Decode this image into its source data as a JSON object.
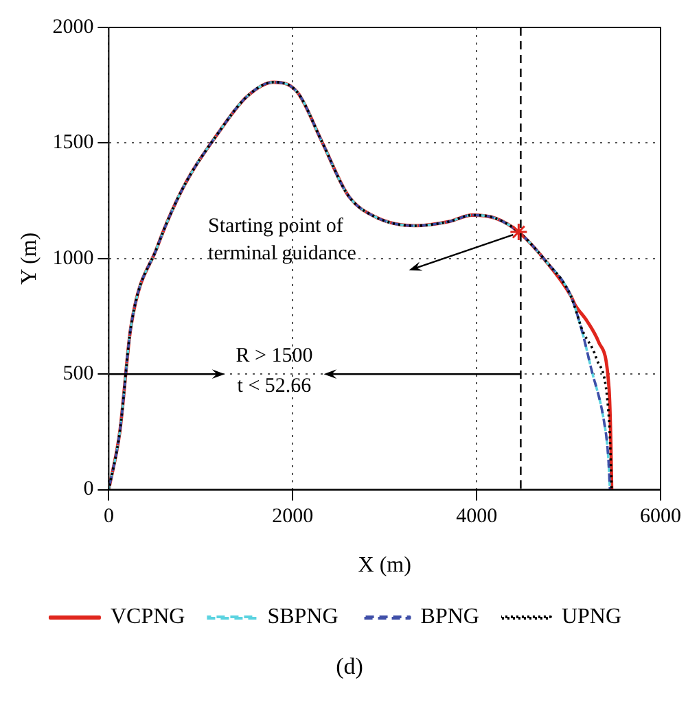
{
  "chart_data": {
    "type": "line",
    "xlabel": "X (m)",
    "ylabel": "Y (m)",
    "xlim": [
      0,
      6000
    ],
    "xticks": [
      0,
      2000,
      4000,
      6000
    ],
    "ylim": [
      0,
      2000
    ],
    "yticks": [
      0,
      500,
      1000,
      1500,
      2000
    ],
    "grid": true,
    "legend": "bottom",
    "series": [
      {
        "name": "VCPNG",
        "color": "#e0261d",
        "line_style": "solid",
        "x": [
          0,
          120,
          241,
          523,
          800,
          1197,
          1500,
          1790,
          2050,
          2322,
          2602,
          2900,
          3333,
          3700,
          3951,
          4200,
          4457,
          4750,
          5020,
          5070,
          5200,
          5329,
          5441,
          5460,
          5469
        ],
        "values": [
          0,
          250,
          705,
          1046,
          1300,
          1547,
          1700,
          1763,
          1720,
          1502,
          1274,
          1180,
          1142,
          1160,
          1188,
          1175,
          1115,
          990,
          842,
          800,
          730,
          637,
          432,
          200,
          0
        ]
      },
      {
        "name": "SBPNG",
        "color": "#5bd3e0",
        "line_style": "dashed",
        "x": [
          0,
          120,
          241,
          523,
          800,
          1197,
          1500,
          1790,
          2050,
          2322,
          2602,
          2900,
          3333,
          3700,
          3951,
          4200,
          4457,
          4750,
          5020,
          5150,
          5245,
          5385,
          5430,
          5450
        ],
        "values": [
          0,
          250,
          705,
          1046,
          1300,
          1547,
          1700,
          1763,
          1720,
          1502,
          1274,
          1180,
          1142,
          1160,
          1188,
          1175,
          1115,
          990,
          842,
          680,
          525,
          296,
          150,
          0
        ]
      },
      {
        "name": "BPNG",
        "color": "#3f4fa8",
        "line_style": "dashed",
        "x": [
          0,
          120,
          241,
          523,
          800,
          1197,
          1500,
          1790,
          2050,
          2322,
          2602,
          2900,
          3333,
          3700,
          3951,
          4200,
          4457,
          4750,
          5020,
          5150,
          5245,
          5385,
          5430,
          5450
        ],
        "values": [
          0,
          250,
          705,
          1046,
          1300,
          1547,
          1700,
          1763,
          1720,
          1502,
          1274,
          1180,
          1142,
          1160,
          1188,
          1175,
          1115,
          990,
          842,
          680,
          525,
          296,
          150,
          0
        ]
      },
      {
        "name": "UPNG",
        "color": "#000000",
        "line_style": "dotted",
        "x": [
          0,
          120,
          241,
          523,
          800,
          1197,
          1500,
          1790,
          2050,
          2322,
          2602,
          2900,
          3333,
          3700,
          3951,
          4200,
          4457,
          4750,
          5020,
          5150,
          5301,
          5441,
          5469
        ],
        "values": [
          0,
          250,
          705,
          1046,
          1300,
          1547,
          1700,
          1763,
          1720,
          1502,
          1274,
          1180,
          1142,
          1160,
          1188,
          1175,
          1115,
          990,
          842,
          690,
          569,
          296,
          0
        ]
      },
      {
        "type": "scatter",
        "marker": "cross",
        "color": "#e0261d",
        "x": [
          4457
        ],
        "values": [
          1115
        ]
      }
    ],
    "ref_lines": [
      {
        "axis": "x",
        "value": 4480,
        "color": "#000000",
        "line_style": "dashed"
      }
    ],
    "annotations": [
      "Starting point of terminal guidance",
      {
        "text": "R > 1500",
        "x": 4480,
        "y": 500
      },
      "t < 52.66",
      "(d)"
    ]
  }
}
